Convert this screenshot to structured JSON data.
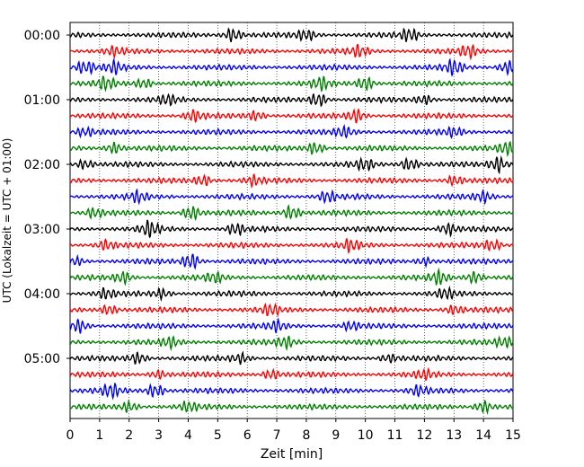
{
  "chart_data": {
    "type": "line",
    "title": "",
    "xlabel": "Zeit  [min]",
    "ylabel": "UTC (Lokalzeit = UTC + 01:00)",
    "xlim": [
      0,
      15
    ],
    "x_ticks": [
      0,
      1,
      2,
      3,
      4,
      5,
      6,
      7,
      8,
      9,
      10,
      11,
      12,
      13,
      14,
      15
    ],
    "y_tick_labels": [
      "00:00",
      "01:00",
      "02:00",
      "03:00",
      "04:00",
      "05:00"
    ],
    "y_tick_trace_index": [
      0,
      4,
      8,
      12,
      16,
      20
    ],
    "trace_minutes": 15,
    "trace_count": 24,
    "trace_colors": [
      "#000000",
      "#ff0000",
      "#0000ff",
      "#008000"
    ],
    "grid": "vertical dotted at each minute",
    "traces": [
      {
        "start": "00:00",
        "color": "#000000",
        "bursts": [
          {
            "t": 5.5,
            "a": 0.9
          },
          {
            "t": 11.5,
            "a": 0.8
          },
          {
            "t": 8.0,
            "a": 0.7
          }
        ]
      },
      {
        "start": "00:15",
        "color": "#ff0000",
        "bursts": [
          {
            "t": 1.5,
            "a": 0.5
          },
          {
            "t": 9.8,
            "a": 0.7
          },
          {
            "t": 13.5,
            "a": 0.8
          }
        ]
      },
      {
        "start": "00:30",
        "color": "#0000ff",
        "bursts": [
          {
            "t": 0.5,
            "a": 0.9
          },
          {
            "t": 1.5,
            "a": 0.7
          },
          {
            "t": 13.0,
            "a": 0.9
          },
          {
            "t": 14.8,
            "a": 0.8
          }
        ]
      },
      {
        "start": "00:45",
        "color": "#008000",
        "bursts": [
          {
            "t": 1.2,
            "a": 0.8
          },
          {
            "t": 2.5,
            "a": 0.6
          },
          {
            "t": 8.5,
            "a": 0.8
          },
          {
            "t": 10.0,
            "a": 0.9
          }
        ]
      },
      {
        "start": "01:00",
        "color": "#000000",
        "bursts": [
          {
            "t": 8.4,
            "a": 0.9
          },
          {
            "t": 3.3,
            "a": 0.6
          },
          {
            "t": 12.0,
            "a": 0.6
          }
        ]
      },
      {
        "start": "01:15",
        "color": "#ff0000",
        "bursts": [
          {
            "t": 4.2,
            "a": 0.7
          },
          {
            "t": 6.3,
            "a": 0.6
          },
          {
            "t": 9.7,
            "a": 0.8
          }
        ]
      },
      {
        "start": "01:30",
        "color": "#0000ff",
        "bursts": [
          {
            "t": 0.5,
            "a": 0.5
          },
          {
            "t": 9.3,
            "a": 0.6
          },
          {
            "t": 13.0,
            "a": 0.6
          }
        ]
      },
      {
        "start": "01:45",
        "color": "#008000",
        "bursts": [
          {
            "t": 1.5,
            "a": 0.7
          },
          {
            "t": 8.3,
            "a": 0.8
          },
          {
            "t": 14.8,
            "a": 0.8
          }
        ]
      },
      {
        "start": "02:00",
        "color": "#000000",
        "bursts": [
          {
            "t": 0.5,
            "a": 0.6
          },
          {
            "t": 10.0,
            "a": 0.7
          },
          {
            "t": 11.5,
            "a": 0.9
          },
          {
            "t": 14.5,
            "a": 1.0
          }
        ]
      },
      {
        "start": "02:15",
        "color": "#ff0000",
        "bursts": [
          {
            "t": 4.5,
            "a": 0.7
          },
          {
            "t": 6.2,
            "a": 0.6
          },
          {
            "t": 13.0,
            "a": 0.6
          }
        ]
      },
      {
        "start": "02:30",
        "color": "#0000ff",
        "bursts": [
          {
            "t": 2.3,
            "a": 0.6
          },
          {
            "t": 8.7,
            "a": 0.7
          },
          {
            "t": 14.0,
            "a": 0.6
          }
        ]
      },
      {
        "start": "02:45",
        "color": "#008000",
        "bursts": [
          {
            "t": 0.8,
            "a": 0.6
          },
          {
            "t": 4.1,
            "a": 0.9
          },
          {
            "t": 7.5,
            "a": 0.9
          }
        ]
      },
      {
        "start": "03:00",
        "color": "#000000",
        "bursts": [
          {
            "t": 2.7,
            "a": 1.0
          },
          {
            "t": 5.6,
            "a": 0.7
          },
          {
            "t": 12.8,
            "a": 0.7
          }
        ]
      },
      {
        "start": "03:15",
        "color": "#ff0000",
        "bursts": [
          {
            "t": 1.2,
            "a": 0.6
          },
          {
            "t": 9.5,
            "a": 0.7
          },
          {
            "t": 14.3,
            "a": 0.7
          }
        ]
      },
      {
        "start": "03:30",
        "color": "#0000ff",
        "bursts": [
          {
            "t": 4.1,
            "a": 1.1
          },
          {
            "t": 0.2,
            "a": 0.5
          },
          {
            "t": 12.0,
            "a": 0.5
          }
        ]
      },
      {
        "start": "03:45",
        "color": "#008000",
        "bursts": [
          {
            "t": 1.8,
            "a": 0.7
          },
          {
            "t": 4.9,
            "a": 0.6
          },
          {
            "t": 12.5,
            "a": 0.8
          },
          {
            "t": 13.7,
            "a": 0.8
          }
        ]
      },
      {
        "start": "04:00",
        "color": "#000000",
        "bursts": [
          {
            "t": 1.2,
            "a": 0.6
          },
          {
            "t": 3.1,
            "a": 0.6
          },
          {
            "t": 12.7,
            "a": 0.6
          }
        ]
      },
      {
        "start": "04:15",
        "color": "#ff0000",
        "bursts": [
          {
            "t": 1.3,
            "a": 0.7
          },
          {
            "t": 6.8,
            "a": 0.7
          },
          {
            "t": 13.0,
            "a": 0.6
          }
        ]
      },
      {
        "start": "04:30",
        "color": "#0000ff",
        "bursts": [
          {
            "t": 0.3,
            "a": 0.9
          },
          {
            "t": 7.0,
            "a": 0.6
          },
          {
            "t": 9.5,
            "a": 0.5
          }
        ]
      },
      {
        "start": "04:45",
        "color": "#008000",
        "bursts": [
          {
            "t": 3.4,
            "a": 0.6
          },
          {
            "t": 7.3,
            "a": 0.7
          },
          {
            "t": 14.7,
            "a": 0.6
          }
        ]
      },
      {
        "start": "05:00",
        "color": "#000000",
        "bursts": [
          {
            "t": 2.3,
            "a": 0.7
          },
          {
            "t": 5.8,
            "a": 0.6
          },
          {
            "t": 10.8,
            "a": 0.6
          }
        ]
      },
      {
        "start": "05:15",
        "color": "#ff0000",
        "bursts": [
          {
            "t": 3.0,
            "a": 0.5
          },
          {
            "t": 6.8,
            "a": 0.6
          },
          {
            "t": 12.0,
            "a": 0.5
          }
        ]
      },
      {
        "start": "05:30",
        "color": "#0000ff",
        "bursts": [
          {
            "t": 1.4,
            "a": 0.8
          },
          {
            "t": 2.9,
            "a": 0.9
          },
          {
            "t": 11.8,
            "a": 0.6
          }
        ]
      },
      {
        "start": "05:45",
        "color": "#008000",
        "bursts": [
          {
            "t": 2.0,
            "a": 0.6
          },
          {
            "t": 4.0,
            "a": 0.6
          },
          {
            "t": 14.0,
            "a": 0.8
          }
        ]
      }
    ]
  }
}
